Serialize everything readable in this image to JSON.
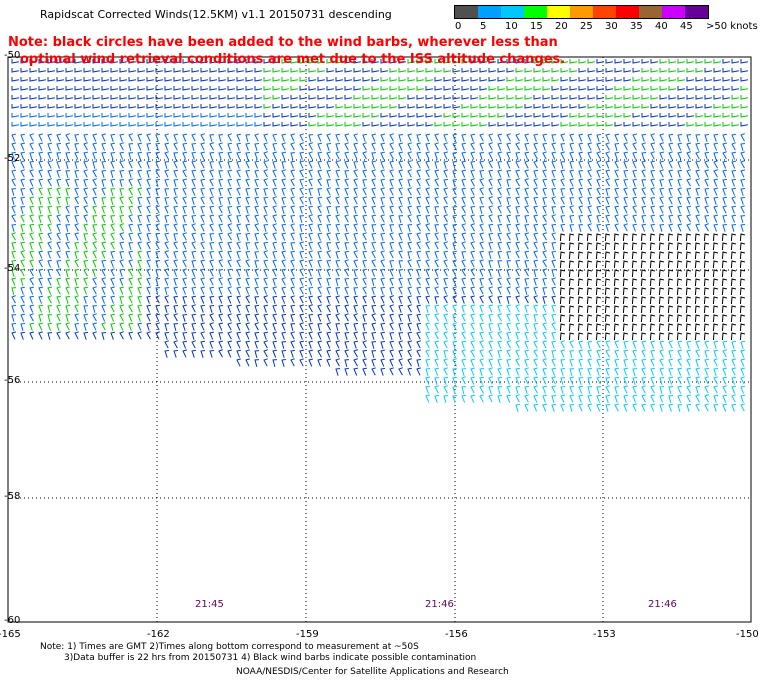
{
  "header": {
    "title": "Rapidscat Corrected Winds(12.5KM) v1.1 20150731 descending",
    "note_line1": "Note: black circles have been added to the wind barbs, wherever less than",
    "note_line2": "optimal wind retrieval conditions are met due to the ISS altitude changes."
  },
  "legend": {
    "unit": ">50 knots",
    "colors": [
      "#505050",
      "#00a0ff",
      "#00c8ff",
      "#00ff00",
      "#ffff00",
      "#ff9900",
      "#ff4400",
      "#ff0000",
      "#996633",
      "#cc00ff",
      "#660099"
    ],
    "labels": [
      "0",
      "5",
      "10",
      "15",
      "20",
      "25",
      "30",
      "35",
      "40",
      "45"
    ]
  },
  "map": {
    "lat_labels": [
      "-50",
      "-52",
      "-54",
      "-56",
      "-58",
      "-60"
    ],
    "lon_labels": [
      "-165",
      "-162",
      "-159",
      "-156",
      "-153",
      "-150"
    ],
    "time_labels": [
      "21:45",
      "21:46",
      "21:46"
    ],
    "barb_colors": {
      "calm_blue": "#0033cc",
      "light_blue": "#0066ff",
      "cyan": "#00ccff",
      "green": "#00cc00",
      "contaminated": "#000000"
    }
  },
  "footer": {
    "footnote_line1": "Note: 1) Times are GMT 2)Times along bottom correspond to measurement at ~50S",
    "footnote_line2": "3)Data buffer is 22 hrs from 20150731 4) Black wind barbs indicate possible contamination",
    "credit": "NOAA/NESDIS/Center for Satellite Applications and Research"
  }
}
